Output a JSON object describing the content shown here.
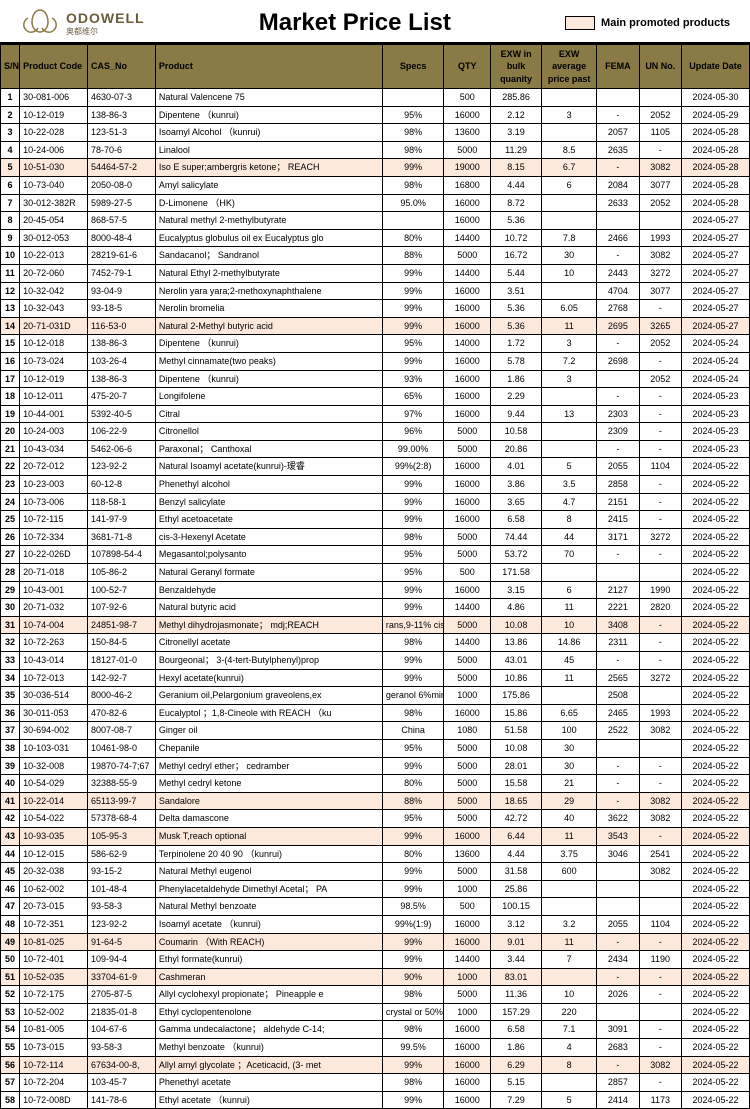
{
  "header": {
    "logo_text": "ODOWELL",
    "logo_sub": "奥都维尔",
    "title": "Market Price List",
    "legend": "Main promoted products"
  },
  "columns": [
    "S/N",
    "Product Code",
    "CAS_No",
    "Product",
    "Specs",
    "QTY",
    "EXW in bulk quanity",
    "EXW average price past",
    "FEMA",
    "UN No.",
    "Update Date"
  ],
  "rows": [
    {
      "hl": 0,
      "sn": "1",
      "code": "30-081-006",
      "cas": "4630-07-3",
      "prod": "Natural Valencene 75",
      "spec": "",
      "qty": "500",
      "exwb": "285.86",
      "exwa": "",
      "fema": "",
      "un": "",
      "date": "2024-05-30"
    },
    {
      "hl": 0,
      "sn": "2",
      "code": "10-12-019",
      "cas": "138-86-3",
      "prod": "Dipentene （kunrui)",
      "spec": "95%",
      "qty": "16000",
      "exwb": "2.12",
      "exwa": "3",
      "fema": "-",
      "un": "2052",
      "date": "2024-05-29"
    },
    {
      "hl": 0,
      "sn": "3",
      "code": "10-22-028",
      "cas": "123-51-3",
      "prod": "Isoamyl Alcohol （kunrui)",
      "spec": "98%",
      "qty": "13600",
      "exwb": "3.19",
      "exwa": "",
      "fema": "2057",
      "un": "1105",
      "date": "2024-05-28"
    },
    {
      "hl": 0,
      "sn": "4",
      "code": "10-24-006",
      "cas": "78-70-6",
      "prod": "Linalool",
      "spec": "98%",
      "qty": "5000",
      "exwb": "11.29",
      "exwa": "8.5",
      "fema": "2635",
      "un": "-",
      "date": "2024-05-28"
    },
    {
      "hl": 1,
      "sn": "5",
      "code": "10-51-030",
      "cas": "54464-57-2",
      "prod": "Iso E super;ambergris ketone； REACH",
      "spec": "99%",
      "qty": "19000",
      "exwb": "8.15",
      "exwa": "6.7",
      "fema": "-",
      "un": "3082",
      "date": "2024-05-28"
    },
    {
      "hl": 0,
      "sn": "6",
      "code": "10-73-040",
      "cas": "2050-08-0",
      "prod": "Amyl salicylate",
      "spec": "98%",
      "qty": "16800",
      "exwb": "4.44",
      "exwa": "6",
      "fema": "2084",
      "un": "3077",
      "date": "2024-05-28"
    },
    {
      "hl": 0,
      "sn": "7",
      "code": "30-012-382R",
      "cas": "5989-27-5",
      "prod": "D-Limonene （HK)",
      "spec": "95.0%",
      "qty": "16000",
      "exwb": "8.72",
      "exwa": "",
      "fema": "2633",
      "un": "2052",
      "date": "2024-05-28"
    },
    {
      "hl": 0,
      "sn": "8",
      "code": "20-45-054",
      "cas": "868-57-5",
      "prod": "Natural methyl 2-methylbutyrate",
      "spec": "",
      "qty": "16000",
      "exwb": "5.36",
      "exwa": "",
      "fema": "",
      "un": "",
      "date": "2024-05-27"
    },
    {
      "hl": 0,
      "sn": "9",
      "code": "30-012-053",
      "cas": "8000-48-4",
      "prod": "Eucalyptus globulus oil ex Eucalyptus glo",
      "spec": "80%",
      "qty": "14400",
      "exwb": "10.72",
      "exwa": "7.8",
      "fema": "2466",
      "un": "1993",
      "date": "2024-05-27"
    },
    {
      "hl": 0,
      "sn": "10",
      "code": "10-22-013",
      "cas": "28219-61-6",
      "prod": "Sandacanol； Sandranol",
      "spec": "88%",
      "qty": "5000",
      "exwb": "16.72",
      "exwa": "30",
      "fema": "-",
      "un": "3082",
      "date": "2024-05-27"
    },
    {
      "hl": 0,
      "sn": "11",
      "code": "20-72-060",
      "cas": "7452-79-1",
      "prod": "Natural Ethyl 2-methylbutyrate",
      "spec": "99%",
      "qty": "14400",
      "exwb": "5.44",
      "exwa": "10",
      "fema": "2443",
      "un": "3272",
      "date": "2024-05-27"
    },
    {
      "hl": 0,
      "sn": "12",
      "code": "10-32-042",
      "cas": "93-04-9",
      "prod": "Nerolin yara yara;2-methoxynaphthalene",
      "spec": "99%",
      "qty": "16000",
      "exwb": "3.51",
      "exwa": "",
      "fema": "4704",
      "un": "3077",
      "date": "2024-05-27"
    },
    {
      "hl": 0,
      "sn": "13",
      "code": "10-32-043",
      "cas": "93-18-5",
      "prod": "Nerolin bromelia",
      "spec": "99%",
      "qty": "16000",
      "exwb": "5.36",
      "exwa": "6.05",
      "fema": "2768",
      "un": "-",
      "date": "2024-05-27"
    },
    {
      "hl": 1,
      "sn": "14",
      "code": "20-71-031D",
      "cas": "116-53-0",
      "prod": "Natural 2-Methyl butyric acid",
      "spec": "99%",
      "qty": "16000",
      "exwb": "5.36",
      "exwa": "11",
      "fema": "2695",
      "un": "3265",
      "date": "2024-05-27"
    },
    {
      "hl": 0,
      "sn": "15",
      "code": "10-12-018",
      "cas": "138-86-3",
      "prod": "Dipentene （kunrui)",
      "spec": "95%",
      "qty": "14000",
      "exwb": "1.72",
      "exwa": "3",
      "fema": "-",
      "un": "2052",
      "date": "2024-05-24"
    },
    {
      "hl": 0,
      "sn": "16",
      "code": "10-73-024",
      "cas": "103-26-4",
      "prod": "Methyl cinnamate(two peaks)",
      "spec": "99%",
      "qty": "16000",
      "exwb": "5.78",
      "exwa": "7.2",
      "fema": "2698",
      "un": "-",
      "date": "2024-05-24"
    },
    {
      "hl": 0,
      "sn": "17",
      "code": "10-12-019",
      "cas": "138-86-3",
      "prod": "Dipentene （kunrui)",
      "spec": "93%",
      "qty": "16000",
      "exwb": "1.86",
      "exwa": "3",
      "fema": "",
      "un": "2052",
      "date": "2024-05-24"
    },
    {
      "hl": 0,
      "sn": "18",
      "code": "10-12-011",
      "cas": "475-20-7",
      "prod": "Longifolene",
      "spec": "65%",
      "qty": "16000",
      "exwb": "2.29",
      "exwa": "",
      "fema": "-",
      "un": "-",
      "date": "2024-05-23"
    },
    {
      "hl": 0,
      "sn": "19",
      "code": "10-44-001",
      "cas": "5392-40-5",
      "prod": "Citral",
      "spec": "97%",
      "qty": "16000",
      "exwb": "9.44",
      "exwa": "13",
      "fema": "2303",
      "un": "-",
      "date": "2024-05-23"
    },
    {
      "hl": 0,
      "sn": "20",
      "code": "10-24-003",
      "cas": "106-22-9",
      "prod": "Citronellol",
      "spec": "96%",
      "qty": "5000",
      "exwb": "10.58",
      "exwa": "",
      "fema": "2309",
      "un": "-",
      "date": "2024-05-23"
    },
    {
      "hl": 0,
      "sn": "21",
      "code": "10-43-034",
      "cas": "5462-06-6",
      "prod": "Paraxonal； Canthoxal",
      "spec": "99.00%",
      "qty": "5000",
      "exwb": "20.86",
      "exwa": "",
      "fema": "-",
      "un": "-",
      "date": "2024-05-23"
    },
    {
      "hl": 0,
      "sn": "22",
      "code": "20-72-012",
      "cas": "123-92-2",
      "prod": "Natural Isoamyl acetate(kunrui)-瑷睿",
      "spec": "99%(2:8)",
      "qty": "16000",
      "exwb": "4.01",
      "exwa": "5",
      "fema": "2055",
      "un": "1104",
      "date": "2024-05-22"
    },
    {
      "hl": 0,
      "sn": "23",
      "code": "10-23-003",
      "cas": "60-12-8",
      "prod": "Phenethyl alcohol",
      "spec": "99%",
      "qty": "16000",
      "exwb": "3.86",
      "exwa": "3.5",
      "fema": "2858",
      "un": "-",
      "date": "2024-05-22"
    },
    {
      "hl": 0,
      "sn": "24",
      "code": "10-73-006",
      "cas": "118-58-1",
      "prod": "Benzyl salicylate",
      "spec": "99%",
      "qty": "16000",
      "exwb": "3.65",
      "exwa": "4.7",
      "fema": "2151",
      "un": "-",
      "date": "2024-05-22"
    },
    {
      "hl": 0,
      "sn": "25",
      "code": "10-72-115",
      "cas": "141-97-9",
      "prod": "Ethyl acetoacetate",
      "spec": "99%",
      "qty": "16000",
      "exwb": "6.58",
      "exwa": "8",
      "fema": "2415",
      "un": "-",
      "date": "2024-05-22"
    },
    {
      "hl": 0,
      "sn": "26",
      "code": "10-72-334",
      "cas": "3681-71-8",
      "prod": "cis-3-Hexenyl Acetate",
      "spec": "98%",
      "qty": "5000",
      "exwb": "74.44",
      "exwa": "44",
      "fema": "3171",
      "un": "3272",
      "date": "2024-05-22"
    },
    {
      "hl": 0,
      "sn": "27",
      "code": "10-22-026D",
      "cas": "107898-54-4",
      "prod": "Megasantol;polysanto",
      "spec": "95%",
      "qty": "5000",
      "exwb": "53.72",
      "exwa": "70",
      "fema": "-",
      "un": "-",
      "date": "2024-05-22"
    },
    {
      "hl": 0,
      "sn": "28",
      "code": "20-71-018",
      "cas": "105-86-2",
      "prod": "Natural Geranyl formate",
      "spec": "95%",
      "qty": "500",
      "exwb": "171.58",
      "exwa": "",
      "fema": "",
      "un": "",
      "date": "2024-05-22"
    },
    {
      "hl": 0,
      "sn": "29",
      "code": "10-43-001",
      "cas": "100-52-7",
      "prod": "Benzaldehyde",
      "spec": "99%",
      "qty": "16000",
      "exwb": "3.15",
      "exwa": "6",
      "fema": "2127",
      "un": "1990",
      "date": "2024-05-22"
    },
    {
      "hl": 0,
      "sn": "30",
      "code": "20-71-032",
      "cas": "107-92-6",
      "prod": "Natural butyric acid",
      "spec": "99%",
      "qty": "14400",
      "exwb": "4.86",
      "exwa": "11",
      "fema": "2221",
      "un": "2820",
      "date": "2024-05-22"
    },
    {
      "hl": 1,
      "sn": "31",
      "code": "10-74-004",
      "cas": "24851-98-7",
      "prod": "Methyl dihydrojasmonate； mdj;REACH",
      "spec": "rans,9-11% cis i",
      "qty": "5000",
      "exwb": "10.08",
      "exwa": "10",
      "fema": "3408",
      "un": "-",
      "date": "2024-05-22"
    },
    {
      "hl": 0,
      "sn": "32",
      "code": "10-72-263",
      "cas": "150-84-5",
      "prod": "Citronellyl acetate",
      "spec": "98%",
      "qty": "14400",
      "exwb": "13.86",
      "exwa": "14.86",
      "fema": "2311",
      "un": "-",
      "date": "2024-05-22"
    },
    {
      "hl": 0,
      "sn": "33",
      "code": "10-43-014",
      "cas": "18127-01-0",
      "prod": "Bourgeonal； 3-(4-tert-Butylphenyl)prop",
      "spec": "99%",
      "qty": "5000",
      "exwb": "43.01",
      "exwa": "45",
      "fema": "-",
      "un": "-",
      "date": "2024-05-22"
    },
    {
      "hl": 0,
      "sn": "34",
      "code": "10-72-013",
      "cas": "142-92-7",
      "prod": "Hexyl acetate(kunrui)",
      "spec": "99%",
      "qty": "5000",
      "exwb": "10.86",
      "exwa": "11",
      "fema": "2565",
      "un": "3272",
      "date": "2024-05-22"
    },
    {
      "hl": 0,
      "sn": "35",
      "code": "30-036-514",
      "cas": "8000-46-2",
      "prod": "Geranium oil,Pelargonium graveolens,ex",
      "spec": "geranol 6%min",
      "qty": "1000",
      "exwb": "175.86",
      "exwa": "",
      "fema": "2508",
      "un": "",
      "date": "2024-05-22"
    },
    {
      "hl": 0,
      "sn": "36",
      "code": "30-011-053",
      "cas": "470-82-6",
      "prod": "Eucalyptol ；1,8-Cineole with REACH （ku",
      "spec": "98%",
      "qty": "16000",
      "exwb": "15.86",
      "exwa": "6.65",
      "fema": "2465",
      "un": "1993",
      "date": "2024-05-22"
    },
    {
      "hl": 0,
      "sn": "37",
      "code": "30-694-002",
      "cas": "8007-08-7",
      "prod": "Ginger oil",
      "spec": "China",
      "qty": "1080",
      "exwb": "51.58",
      "exwa": "100",
      "fema": "2522",
      "un": "3082",
      "date": "2024-05-22"
    },
    {
      "hl": 0,
      "sn": "38",
      "code": "10-103-031",
      "cas": "10461-98-0",
      "prod": "Chepanile",
      "spec": "95%",
      "qty": "5000",
      "exwb": "10.08",
      "exwa": "30",
      "fema": "",
      "un": "",
      "date": "2024-05-22"
    },
    {
      "hl": 0,
      "sn": "39",
      "code": "10-32-008",
      "cas": "19870-74-7;67",
      "prod": "Methyl cedryl ether； cedramber",
      "spec": "99%",
      "qty": "5000",
      "exwb": "28.01",
      "exwa": "30",
      "fema": "-",
      "un": "-",
      "date": "2024-05-22"
    },
    {
      "hl": 0,
      "sn": "40",
      "code": "10-54-029",
      "cas": "32388-55-9",
      "prod": "Methyl cedryl ketone",
      "spec": "80%",
      "qty": "5000",
      "exwb": "15.58",
      "exwa": "21",
      "fema": "-",
      "un": "-",
      "date": "2024-05-22"
    },
    {
      "hl": 1,
      "sn": "41",
      "code": "10-22-014",
      "cas": "65113-99-7",
      "prod": "Sandalore",
      "spec": "88%",
      "qty": "5000",
      "exwb": "18.65",
      "exwa": "29",
      "fema": "-",
      "un": "3082",
      "date": "2024-05-22"
    },
    {
      "hl": 0,
      "sn": "42",
      "code": "10-54-022",
      "cas": "57378-68-4",
      "prod": "Delta damascone",
      "spec": "95%",
      "qty": "5000",
      "exwb": "42.72",
      "exwa": "40",
      "fema": "3622",
      "un": "3082",
      "date": "2024-05-22"
    },
    {
      "hl": 1,
      "sn": "43",
      "code": "10-93-035",
      "cas": "105-95-3",
      "prod": "Musk T,reach optional",
      "spec": "99%",
      "qty": "16000",
      "exwb": "6.44",
      "exwa": "11",
      "fema": "3543",
      "un": "-",
      "date": "2024-05-22"
    },
    {
      "hl": 0,
      "sn": "44",
      "code": "10-12-015",
      "cas": "586-62-9",
      "prod": "Terpinolene 20 40 90 （kunrui)",
      "spec": "80%",
      "qty": "13600",
      "exwb": "4.44",
      "exwa": "3.75",
      "fema": "3046",
      "un": "2541",
      "date": "2024-05-22"
    },
    {
      "hl": 0,
      "sn": "45",
      "code": "20-32-038",
      "cas": "93-15-2",
      "prod": "Natural Methyl eugenol",
      "spec": "99%",
      "qty": "5000",
      "exwb": "31.58",
      "exwa": "600",
      "fema": "",
      "un": "3082",
      "date": "2024-05-22"
    },
    {
      "hl": 0,
      "sn": "46",
      "code": "10-62-002",
      "cas": "101-48-4",
      "prod": "Phenylacetaldehyde Dimethyl Acetal； PA",
      "spec": "99%",
      "qty": "1000",
      "exwb": "25.86",
      "exwa": "",
      "fema": "",
      "un": "",
      "date": "2024-05-22"
    },
    {
      "hl": 0,
      "sn": "47",
      "code": "20-73-015",
      "cas": "93-58-3",
      "prod": "Natural Methyl benzoate",
      "spec": "98.5%",
      "qty": "500",
      "exwb": "100.15",
      "exwa": "",
      "fema": "",
      "un": "",
      "date": "2024-05-22"
    },
    {
      "hl": 0,
      "sn": "48",
      "code": "10-72-351",
      "cas": "123-92-2",
      "prod": "Isoamyl acetate （kunrui)",
      "spec": "99%(1:9)",
      "qty": "16000",
      "exwb": "3.12",
      "exwa": "3.2",
      "fema": "2055",
      "un": "1104",
      "date": "2024-05-22"
    },
    {
      "hl": 1,
      "sn": "49",
      "code": "10-81-025",
      "cas": "91-64-5",
      "prod": "Coumarin （With REACH)",
      "spec": "99%",
      "qty": "16000",
      "exwb": "9.01",
      "exwa": "11",
      "fema": "-",
      "un": "-",
      "date": "2024-05-22"
    },
    {
      "hl": 0,
      "sn": "50",
      "code": "10-72-401",
      "cas": "109-94-4",
      "prod": "Ethyl formate(kunrui)",
      "spec": "99%",
      "qty": "14400",
      "exwb": "3.44",
      "exwa": "7",
      "fema": "2434",
      "un": "1190",
      "date": "2024-05-22"
    },
    {
      "hl": 1,
      "sn": "51",
      "code": "10-52-035",
      "cas": "33704-61-9",
      "prod": "Cashmeran",
      "spec": "90%",
      "qty": "1000",
      "exwb": "83.01",
      "exwa": "",
      "fema": "-",
      "un": "-",
      "date": "2024-05-22"
    },
    {
      "hl": 0,
      "sn": "52",
      "code": "10-72-175",
      "cas": "2705-87-5",
      "prod": "Allyl cyclohexyl propionate； Pineapple e",
      "spec": "98%",
      "qty": "5000",
      "exwb": "11.36",
      "exwa": "10",
      "fema": "2026",
      "un": "-",
      "date": "2024-05-22"
    },
    {
      "hl": 0,
      "sn": "53",
      "code": "10-52-002",
      "cas": "21835-01-8",
      "prod": "Ethyl cyclopentenolone",
      "spec": "crystal or 50%in",
      "qty": "1000",
      "exwb": "157.29",
      "exwa": "220",
      "fema": "",
      "un": "",
      "date": "2024-05-22"
    },
    {
      "hl": 0,
      "sn": "54",
      "code": "10-81-005",
      "cas": "104-67-6",
      "prod": "Gamma undecalactone； aldehyde C-14;",
      "spec": "98%",
      "qty": "16000",
      "exwb": "6.58",
      "exwa": "7.1",
      "fema": "3091",
      "un": "-",
      "date": "2024-05-22"
    },
    {
      "hl": 0,
      "sn": "55",
      "code": "10-73-015",
      "cas": "93-58-3",
      "prod": "Methyl benzoate （kunrui)",
      "spec": "99.5%",
      "qty": "16000",
      "exwb": "1.86",
      "exwa": "4",
      "fema": "2683",
      "un": "-",
      "date": "2024-05-22"
    },
    {
      "hl": 1,
      "sn": "56",
      "code": "10-72-114",
      "cas": "67634-00-8,",
      "prod": "Allyl amyl glycolate ；Aceticacid, (3- met",
      "spec": "99%",
      "qty": "16000",
      "exwb": "6.29",
      "exwa": "8",
      "fema": "-",
      "un": "3082",
      "date": "2024-05-22"
    },
    {
      "hl": 0,
      "sn": "57",
      "code": "10-72-204",
      "cas": "103-45-7",
      "prod": "Phenethyl acetate",
      "spec": "98%",
      "qty": "16000",
      "exwb": "5.15",
      "exwa": "",
      "fema": "2857",
      "un": "-",
      "date": "2024-05-22"
    },
    {
      "hl": 0,
      "sn": "58",
      "code": "10-72-008D",
      "cas": "141-78-6",
      "prod": "Ethyl acetate （kunrui)",
      "spec": "99%",
      "qty": "16000",
      "exwb": "7.29",
      "exwa": "5",
      "fema": "2414",
      "un": "1173",
      "date": "2024-05-22"
    }
  ]
}
